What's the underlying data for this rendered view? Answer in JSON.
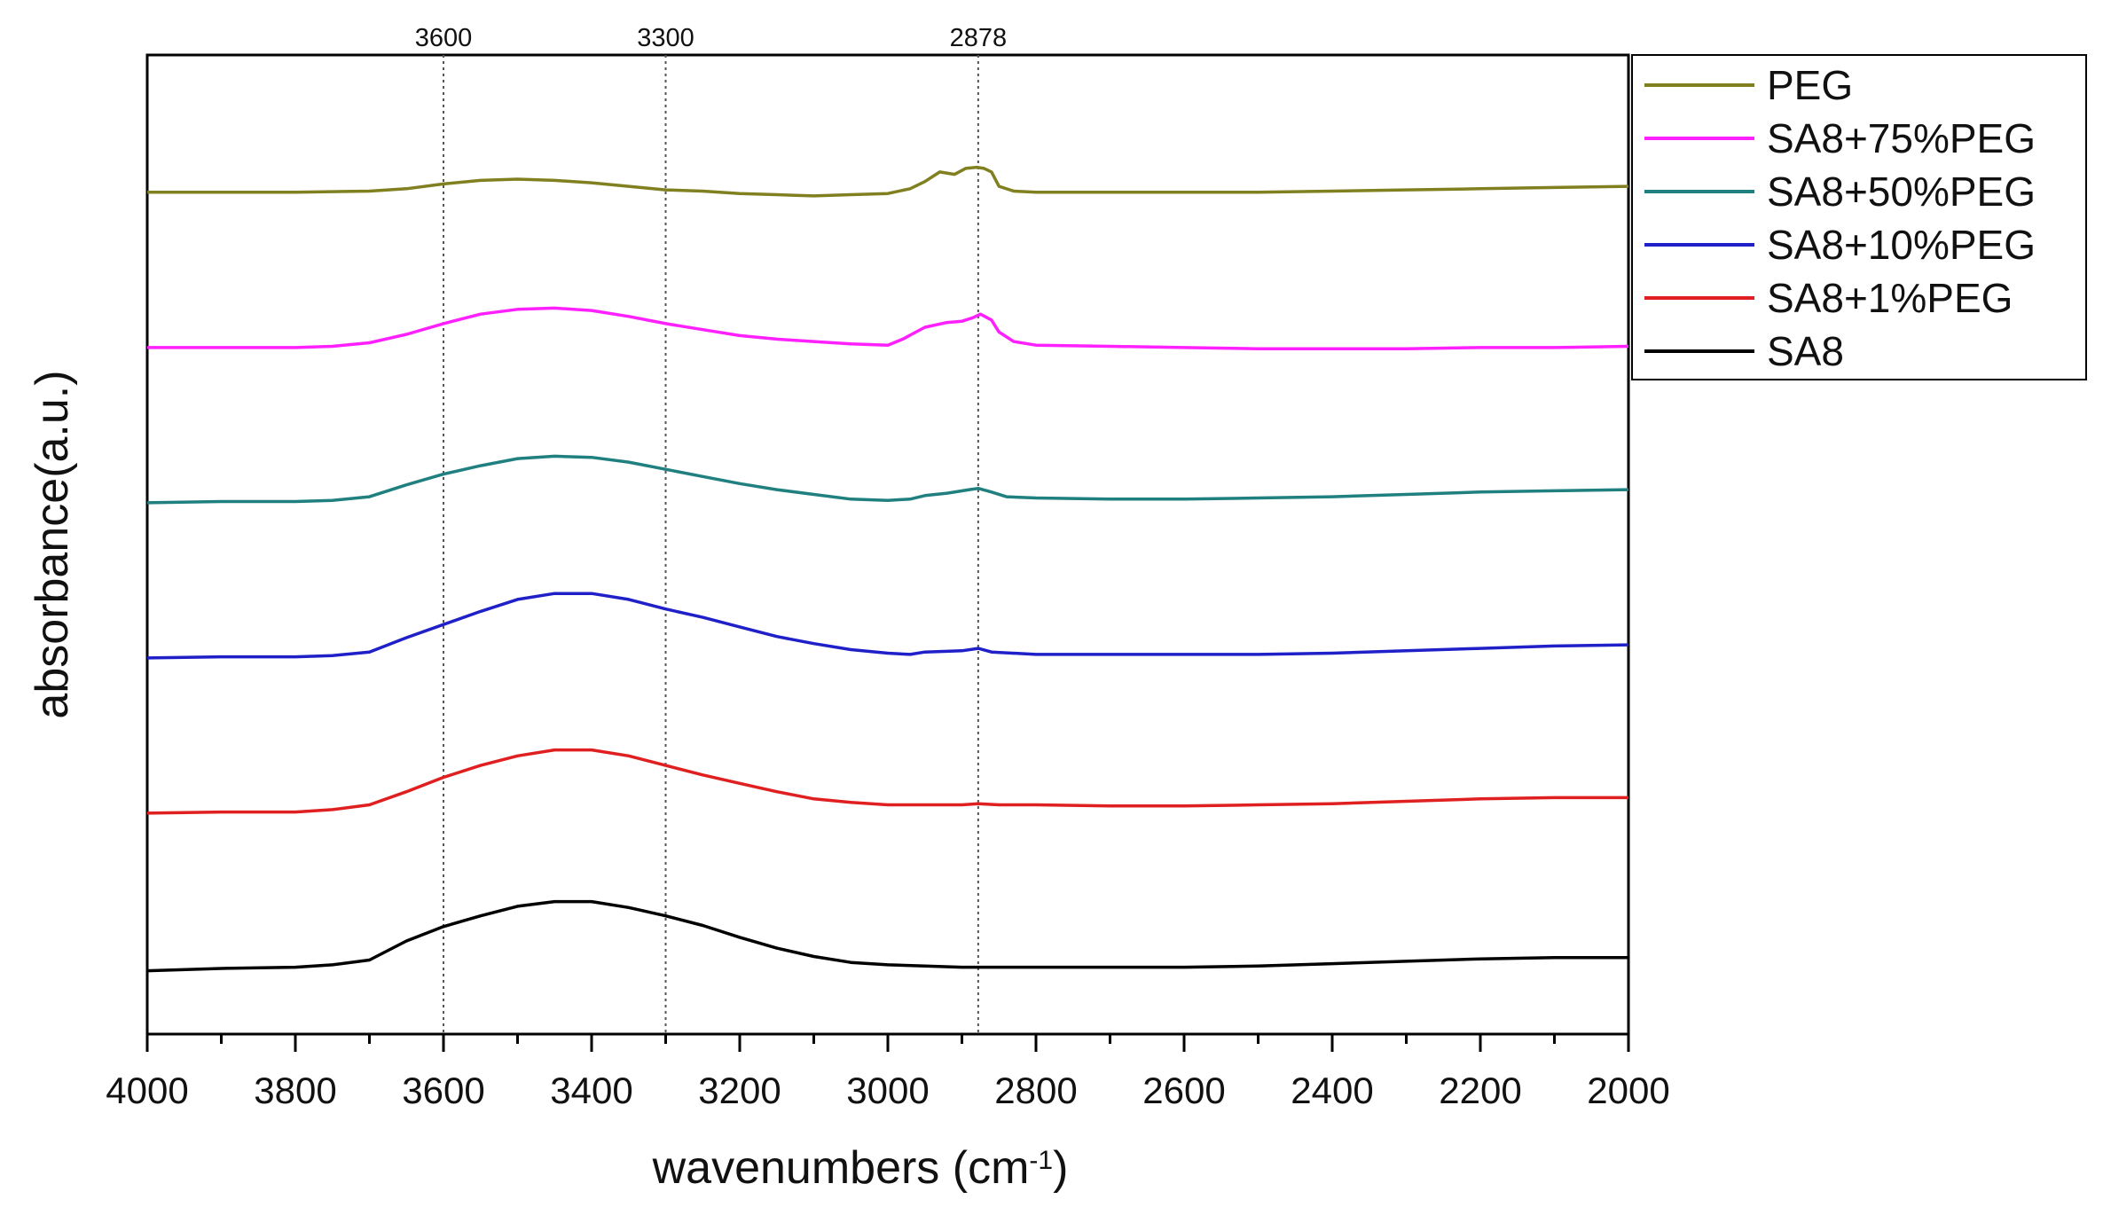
{
  "chart_data": {
    "type": "line",
    "title": "",
    "xlabel": "wavenumbers (cm",
    "xlabel_sup": "-1",
    "xlabel_close": ")",
    "ylabel": "absorbance(a.u.)",
    "xlim": [
      4000,
      2000
    ],
    "ylim": [
      0,
      8.2
    ],
    "x_ticks": [
      "4000",
      "3800",
      "3600",
      "3400",
      "3200",
      "3000",
      "2800",
      "2600",
      "2400",
      "2200",
      "2000"
    ],
    "reference_lines": [
      {
        "x": 3600,
        "label": "3600"
      },
      {
        "x": 3300,
        "label": "3300"
      },
      {
        "x": 2878,
        "label": "2878"
      }
    ],
    "legend_position": "top-right, outside plot",
    "series": [
      {
        "name": "PEG",
        "color": "#808020",
        "points": [
          [
            4000,
            7.05
          ],
          [
            3900,
            7.05
          ],
          [
            3800,
            7.05
          ],
          [
            3700,
            7.06
          ],
          [
            3650,
            7.08
          ],
          [
            3600,
            7.12
          ],
          [
            3550,
            7.15
          ],
          [
            3500,
            7.16
          ],
          [
            3450,
            7.15
          ],
          [
            3400,
            7.13
          ],
          [
            3350,
            7.1
          ],
          [
            3300,
            7.07
          ],
          [
            3250,
            7.06
          ],
          [
            3200,
            7.04
          ],
          [
            3150,
            7.03
          ],
          [
            3100,
            7.02
          ],
          [
            3050,
            7.03
          ],
          [
            3000,
            7.04
          ],
          [
            2970,
            7.08
          ],
          [
            2950,
            7.14
          ],
          [
            2930,
            7.22
          ],
          [
            2910,
            7.2
          ],
          [
            2895,
            7.25
          ],
          [
            2880,
            7.26
          ],
          [
            2870,
            7.25
          ],
          [
            2860,
            7.22
          ],
          [
            2850,
            7.1
          ],
          [
            2830,
            7.06
          ],
          [
            2800,
            7.05
          ],
          [
            2700,
            7.05
          ],
          [
            2600,
            7.05
          ],
          [
            2500,
            7.05
          ],
          [
            2400,
            7.06
          ],
          [
            2300,
            7.07
          ],
          [
            2200,
            7.08
          ],
          [
            2100,
            7.09
          ],
          [
            2000,
            7.1
          ]
        ]
      },
      {
        "name": "SA8+75%PEG",
        "color": "#ff20ff",
        "points": [
          [
            4000,
            5.75
          ],
          [
            3900,
            5.75
          ],
          [
            3800,
            5.75
          ],
          [
            3750,
            5.76
          ],
          [
            3700,
            5.79
          ],
          [
            3650,
            5.86
          ],
          [
            3600,
            5.95
          ],
          [
            3550,
            6.03
          ],
          [
            3500,
            6.07
          ],
          [
            3450,
            6.08
          ],
          [
            3400,
            6.06
          ],
          [
            3350,
            6.01
          ],
          [
            3300,
            5.95
          ],
          [
            3250,
            5.9
          ],
          [
            3200,
            5.85
          ],
          [
            3150,
            5.82
          ],
          [
            3100,
            5.8
          ],
          [
            3050,
            5.78
          ],
          [
            3000,
            5.77
          ],
          [
            2980,
            5.82
          ],
          [
            2950,
            5.92
          ],
          [
            2920,
            5.96
          ],
          [
            2900,
            5.97
          ],
          [
            2885,
            6.0
          ],
          [
            2875,
            6.03
          ],
          [
            2860,
            5.98
          ],
          [
            2850,
            5.88
          ],
          [
            2830,
            5.8
          ],
          [
            2800,
            5.77
          ],
          [
            2700,
            5.76
          ],
          [
            2600,
            5.75
          ],
          [
            2500,
            5.74
          ],
          [
            2400,
            5.74
          ],
          [
            2300,
            5.74
          ],
          [
            2200,
            5.75
          ],
          [
            2100,
            5.75
          ],
          [
            2000,
            5.76
          ]
        ]
      },
      {
        "name": "SA8+50%PEG",
        "color": "#208080",
        "points": [
          [
            4000,
            4.45
          ],
          [
            3900,
            4.46
          ],
          [
            3800,
            4.46
          ],
          [
            3750,
            4.47
          ],
          [
            3700,
            4.5
          ],
          [
            3650,
            4.6
          ],
          [
            3600,
            4.69
          ],
          [
            3550,
            4.76
          ],
          [
            3500,
            4.82
          ],
          [
            3450,
            4.84
          ],
          [
            3400,
            4.83
          ],
          [
            3350,
            4.79
          ],
          [
            3300,
            4.73
          ],
          [
            3250,
            4.67
          ],
          [
            3200,
            4.61
          ],
          [
            3150,
            4.56
          ],
          [
            3100,
            4.52
          ],
          [
            3050,
            4.48
          ],
          [
            3000,
            4.47
          ],
          [
            2970,
            4.48
          ],
          [
            2950,
            4.51
          ],
          [
            2920,
            4.53
          ],
          [
            2890,
            4.56
          ],
          [
            2878,
            4.57
          ],
          [
            2860,
            4.54
          ],
          [
            2840,
            4.5
          ],
          [
            2800,
            4.49
          ],
          [
            2700,
            4.48
          ],
          [
            2600,
            4.48
          ],
          [
            2500,
            4.49
          ],
          [
            2400,
            4.5
          ],
          [
            2300,
            4.52
          ],
          [
            2200,
            4.54
          ],
          [
            2100,
            4.55
          ],
          [
            2000,
            4.56
          ]
        ]
      },
      {
        "name": "SA8+10%PEG",
        "color": "#2020c8",
        "points": [
          [
            4000,
            3.15
          ],
          [
            3900,
            3.16
          ],
          [
            3800,
            3.16
          ],
          [
            3750,
            3.17
          ],
          [
            3700,
            3.2
          ],
          [
            3650,
            3.32
          ],
          [
            3600,
            3.43
          ],
          [
            3550,
            3.54
          ],
          [
            3500,
            3.64
          ],
          [
            3450,
            3.69
          ],
          [
            3400,
            3.69
          ],
          [
            3350,
            3.64
          ],
          [
            3300,
            3.56
          ],
          [
            3250,
            3.49
          ],
          [
            3200,
            3.41
          ],
          [
            3150,
            3.33
          ],
          [
            3100,
            3.27
          ],
          [
            3050,
            3.22
          ],
          [
            3000,
            3.19
          ],
          [
            2970,
            3.18
          ],
          [
            2950,
            3.2
          ],
          [
            2900,
            3.21
          ],
          [
            2878,
            3.23
          ],
          [
            2860,
            3.2
          ],
          [
            2800,
            3.18
          ],
          [
            2700,
            3.18
          ],
          [
            2600,
            3.18
          ],
          [
            2500,
            3.18
          ],
          [
            2400,
            3.19
          ],
          [
            2300,
            3.21
          ],
          [
            2200,
            3.23
          ],
          [
            2100,
            3.25
          ],
          [
            2000,
            3.26
          ]
        ]
      },
      {
        "name": "SA8+1%PEG",
        "color": "#e02020",
        "points": [
          [
            4000,
            1.85
          ],
          [
            3900,
            1.86
          ],
          [
            3800,
            1.86
          ],
          [
            3750,
            1.88
          ],
          [
            3700,
            1.92
          ],
          [
            3650,
            2.03
          ],
          [
            3600,
            2.15
          ],
          [
            3550,
            2.25
          ],
          [
            3500,
            2.33
          ],
          [
            3450,
            2.38
          ],
          [
            3400,
            2.38
          ],
          [
            3350,
            2.33
          ],
          [
            3300,
            2.25
          ],
          [
            3250,
            2.17
          ],
          [
            3200,
            2.1
          ],
          [
            3150,
            2.03
          ],
          [
            3100,
            1.97
          ],
          [
            3050,
            1.94
          ],
          [
            3000,
            1.92
          ],
          [
            2950,
            1.92
          ],
          [
            2900,
            1.92
          ],
          [
            2878,
            1.93
          ],
          [
            2850,
            1.92
          ],
          [
            2800,
            1.92
          ],
          [
            2700,
            1.91
          ],
          [
            2600,
            1.91
          ],
          [
            2500,
            1.92
          ],
          [
            2400,
            1.93
          ],
          [
            2300,
            1.95
          ],
          [
            2200,
            1.97
          ],
          [
            2100,
            1.98
          ],
          [
            2000,
            1.98
          ]
        ]
      },
      {
        "name": "SA8",
        "color": "#000000",
        "points": [
          [
            4000,
            0.53
          ],
          [
            3900,
            0.55
          ],
          [
            3800,
            0.56
          ],
          [
            3750,
            0.58
          ],
          [
            3700,
            0.62
          ],
          [
            3650,
            0.78
          ],
          [
            3600,
            0.9
          ],
          [
            3550,
            0.99
          ],
          [
            3500,
            1.07
          ],
          [
            3450,
            1.11
          ],
          [
            3400,
            1.11
          ],
          [
            3350,
            1.06
          ],
          [
            3300,
            0.99
          ],
          [
            3250,
            0.91
          ],
          [
            3200,
            0.81
          ],
          [
            3150,
            0.72
          ],
          [
            3100,
            0.65
          ],
          [
            3050,
            0.6
          ],
          [
            3000,
            0.58
          ],
          [
            2950,
            0.57
          ],
          [
            2900,
            0.56
          ],
          [
            2850,
            0.56
          ],
          [
            2800,
            0.56
          ],
          [
            2700,
            0.56
          ],
          [
            2600,
            0.56
          ],
          [
            2500,
            0.57
          ],
          [
            2400,
            0.59
          ],
          [
            2300,
            0.61
          ],
          [
            2200,
            0.63
          ],
          [
            2100,
            0.64
          ],
          [
            2000,
            0.64
          ]
        ]
      }
    ]
  }
}
